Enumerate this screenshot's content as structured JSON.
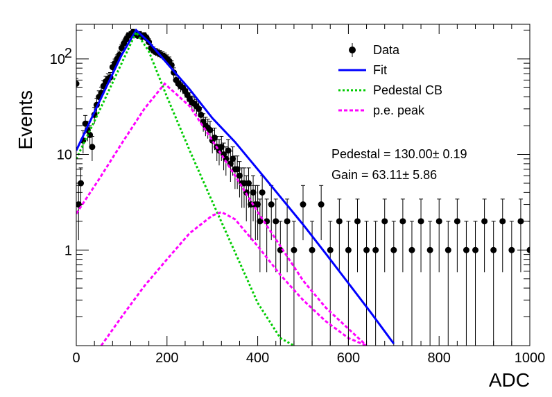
{
  "chart_data": {
    "type": "scatter",
    "title": "",
    "xlabel": "ADC",
    "ylabel": "Events",
    "xlim": [
      0,
      1000
    ],
    "ylim": [
      0.1,
      230
    ],
    "yscale": "log",
    "grid": false,
    "legend_position": "top-right",
    "x_ticks": [
      "0",
      "200",
      "400",
      "600",
      "800",
      "1000"
    ],
    "y_ticks": [
      {
        "value": 1,
        "label": "1"
      },
      {
        "value": 10,
        "label": "10"
      },
      {
        "value": 100,
        "label": "10",
        "exponent": "2"
      }
    ],
    "annotations": [
      {
        "text": "Pedestal = 130.00± 0.19"
      },
      {
        "text": "Gain = 63.11± 5.86"
      }
    ],
    "series": [
      {
        "name": "Data",
        "kind": "points_with_errors",
        "color": "#000000",
        "x": [
          0,
          5,
          10,
          15,
          20,
          25,
          30,
          35,
          40,
          45,
          50,
          55,
          60,
          65,
          70,
          75,
          80,
          85,
          90,
          95,
          100,
          105,
          110,
          115,
          120,
          125,
          130,
          135,
          140,
          145,
          150,
          155,
          160,
          165,
          170,
          175,
          180,
          185,
          190,
          195,
          200,
          205,
          210,
          215,
          220,
          225,
          230,
          235,
          240,
          245,
          250,
          255,
          260,
          265,
          270,
          275,
          280,
          285,
          290,
          295,
          300,
          305,
          310,
          315,
          320,
          325,
          330,
          335,
          340,
          345,
          350,
          355,
          360,
          365,
          370,
          375,
          380,
          385,
          390,
          395,
          400,
          405,
          410,
          420,
          430,
          440,
          450,
          465,
          480,
          500,
          520,
          540,
          560,
          580,
          600,
          620,
          640,
          660,
          680,
          700,
          720,
          740,
          760,
          780,
          800,
          820,
          840,
          860,
          880,
          900,
          920,
          940,
          960,
          980,
          1000
        ],
        "y": [
          55,
          3,
          5,
          14,
          21,
          18,
          16,
          12,
          26,
          33,
          40,
          44,
          52,
          58,
          62,
          64,
          82,
          90,
          100,
          110,
          130,
          145,
          160,
          175,
          180,
          190,
          185,
          175,
          180,
          170,
          175,
          165,
          150,
          130,
          122,
          118,
          115,
          112,
          108,
          105,
          100,
          95,
          86,
          72,
          60,
          55,
          52,
          50,
          46,
          42,
          38,
          35,
          34,
          32,
          30,
          26,
          22,
          20,
          19,
          18,
          14,
          15,
          12,
          11,
          12,
          10,
          9,
          11,
          8,
          9,
          7,
          7,
          6,
          5,
          5,
          4,
          5,
          3,
          4,
          3,
          3,
          2,
          4,
          2,
          3,
          2,
          1,
          2,
          1,
          3,
          1,
          3,
          1,
          2,
          1,
          2,
          1,
          1,
          2,
          1,
          2,
          1,
          2,
          1,
          2,
          1,
          2,
          1,
          1,
          2,
          1,
          2,
          1,
          2,
          1
        ]
      },
      {
        "name": "Fit",
        "kind": "line",
        "color": "#0000ff",
        "style": "solid",
        "x": [
          0,
          50,
          100,
          132,
          160,
          200,
          250,
          300,
          350,
          400,
          450,
          500,
          550,
          600,
          650,
          700
        ],
        "y": [
          11,
          35,
          110,
          200,
          150,
          90,
          48,
          24,
          13.5,
          7,
          3.6,
          1.85,
          0.92,
          0.45,
          0.22,
          0.105
        ]
      },
      {
        "name": "Pedestal CB",
        "kind": "line",
        "color": "#00cc00",
        "style": "dotted",
        "x": [
          0,
          50,
          100,
          132,
          160,
          200,
          250,
          300,
          350,
          400,
          450,
          480
        ],
        "y": [
          9,
          28,
          90,
          190,
          120,
          40,
          11,
          3.2,
          0.95,
          0.28,
          0.12,
          0.1
        ]
      },
      {
        "name": "p.e. peak",
        "kind": "line",
        "color": "#ff00ff",
        "style": "dashed",
        "x": [
          0,
          50,
          100,
          150,
          195,
          250,
          300,
          350,
          400,
          450,
          500,
          550,
          600,
          640
        ],
        "y": [
          2.4,
          5.5,
          13,
          30,
          55,
          32,
          14,
          6,
          2.5,
          1.1,
          0.48,
          0.25,
          0.15,
          0.1
        ]
      },
      {
        "name": "",
        "kind": "line",
        "color": "#ff00ff",
        "style": "dashed",
        "x": [
          55,
          100,
          150,
          200,
          250,
          300,
          320,
          350,
          400,
          450,
          500,
          550,
          600,
          640
        ],
        "y": [
          0.1,
          0.2,
          0.42,
          0.8,
          1.5,
          2.3,
          2.5,
          2.1,
          1.1,
          0.55,
          0.3,
          0.18,
          0.12,
          0.1
        ]
      }
    ]
  }
}
